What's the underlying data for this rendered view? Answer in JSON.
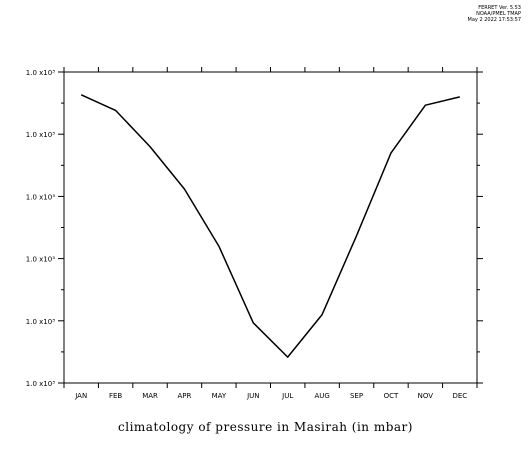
{
  "header": {
    "line1": "FERRET Ver. 5.53",
    "line2": "NOAA/PMEL TMAP",
    "line3": "May  2 2022 17:53:57"
  },
  "chart_data": {
    "type": "line",
    "title": "climatology of pressure in Masirah (in mbar)",
    "xlabel": "",
    "ylabel": "",
    "categories": [
      "JAN",
      "FEB",
      "MAR",
      "APR",
      "MAY",
      "JUN",
      "JUL",
      "AUG",
      "SEP",
      "OCT",
      "NOV",
      "DEC"
    ],
    "series": [
      {
        "values": [
          1017.8,
          1016.3,
          1012.8,
          1008.7,
          1003.2,
          995.8,
          992.5,
          996.6,
          1004.2,
          1012.2,
          1016.8,
          1017.6
        ]
      }
    ],
    "ylim": [
      990,
      1020
    ],
    "y_ticks": [
      {
        "value": 990,
        "label": "1.0 x10³"
      },
      {
        "value": 996,
        "label": "1.0 x10³"
      },
      {
        "value": 1002,
        "label": "1.0 x10³"
      },
      {
        "value": 1008,
        "label": "1.0 x10³"
      },
      {
        "value": 1014,
        "label": "1.0 x10³"
      },
      {
        "value": 1020,
        "label": "1.0 x10³"
      }
    ],
    "grid": false,
    "line_color": "#000000"
  }
}
